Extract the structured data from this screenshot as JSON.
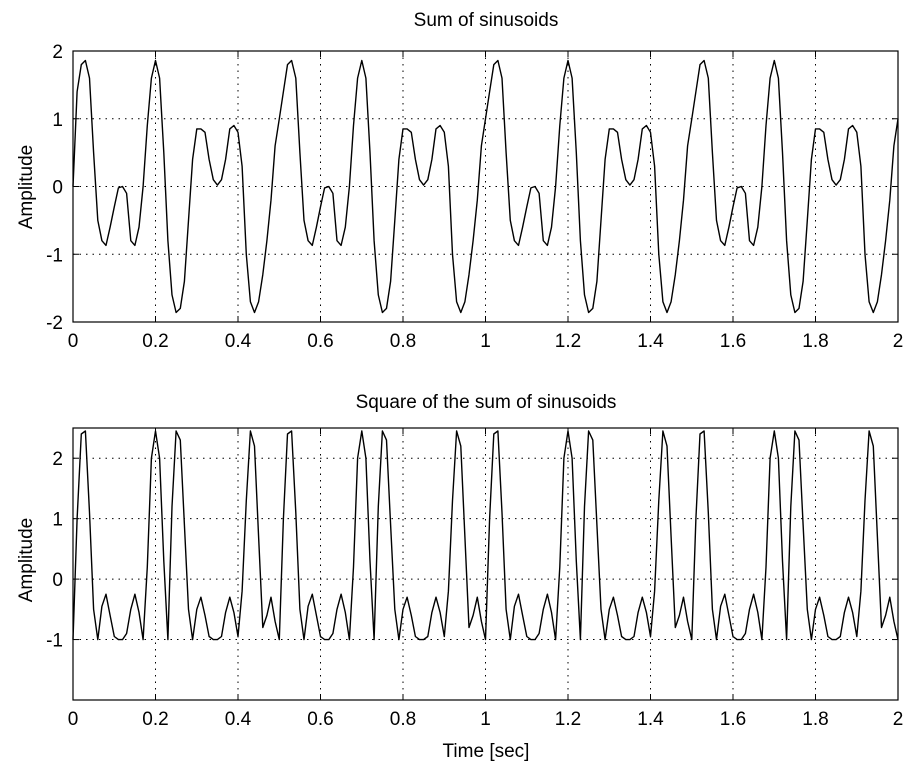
{
  "chart_data": [
    {
      "type": "line",
      "title": "Sum of sinusoids",
      "xlabel": "",
      "ylabel": "Amplitude",
      "xlim": [
        0,
        2
      ],
      "ylim": [
        -2,
        2
      ],
      "xticks": [
        0,
        0.2,
        0.4,
        0.6,
        0.8,
        1,
        1.2,
        1.4,
        1.6,
        1.8,
        2
      ],
      "xtick_labels": [
        "0",
        "0.2",
        "0.4",
        "0.6",
        "0.8",
        "1",
        "1.2",
        "1.4",
        "1.6",
        "1.8",
        "2"
      ],
      "yticks": [
        -2,
        -1,
        0,
        1,
        2
      ],
      "ytick_labels": [
        "-2",
        "-1",
        "0",
        "1",
        "2"
      ],
      "grid": true,
      "series": [
        {
          "x": [
            0,
            0.01,
            0.02,
            0.03,
            0.04,
            0.05,
            0.06,
            0.07,
            0.08,
            0.09,
            0.1,
            0.11,
            0.12,
            0.13,
            0.14,
            0.15,
            0.16,
            0.17,
            0.18,
            0.19,
            0.2,
            0.21,
            0.22,
            0.23,
            0.24,
            0.25,
            0.26,
            0.27,
            0.28,
            0.29,
            0.3,
            0.31,
            0.32,
            0.33,
            0.34,
            0.35,
            0.36,
            0.37,
            0.38,
            0.39,
            0.4,
            0.41,
            0.42,
            0.43,
            0.44,
            0.45,
            0.46,
            0.47,
            0.48,
            0.49,
            0.5
          ],
          "values": [
            0,
            1.4,
            1.8,
            1.86,
            1.6,
            0.5,
            -0.5,
            -0.8,
            -0.87,
            -0.6,
            -0.3,
            -0.02,
            0,
            -0.1,
            -0.8,
            -0.87,
            -0.6,
            0,
            0.9,
            1.6,
            1.86,
            1.6,
            0.5,
            -0.8,
            -1.6,
            -1.86,
            -1.8,
            -1.4,
            -0.5,
            0.4,
            0.85,
            0.85,
            0.8,
            0.4,
            0.1,
            0.02,
            0.1,
            0.4,
            0.85,
            0.9,
            0.8,
            0.3,
            -1.0,
            -1.7,
            -1.86,
            -1.7,
            -1.3,
            -0.8,
            -0.2,
            0.6,
            1.0
          ],
          "period": 0.5
        }
      ]
    },
    {
      "type": "line",
      "title": "Square of the sum of sinusoids",
      "xlabel": "Time [sec]",
      "ylabel": "Amplitude",
      "xlim": [
        0,
        2
      ],
      "ylim": [
        -2,
        2.5
      ],
      "xticks": [
        0,
        0.2,
        0.4,
        0.6,
        0.8,
        1,
        1.2,
        1.4,
        1.6,
        1.8,
        2
      ],
      "xtick_labels": [
        "0",
        "0.2",
        "0.4",
        "0.6",
        "0.8",
        "1",
        "1.2",
        "1.4",
        "1.6",
        "1.8",
        "2"
      ],
      "yticks": [
        -1,
        0,
        1,
        2
      ],
      "ytick_labels": [
        "-1",
        "0",
        "1",
        "2"
      ],
      "grid": true,
      "series": [
        {
          "x": [
            0,
            0.01,
            0.02,
            0.03,
            0.04,
            0.05,
            0.06,
            0.07,
            0.08,
            0.09,
            0.1,
            0.11,
            0.12,
            0.13,
            0.14,
            0.15,
            0.16,
            0.17,
            0.18,
            0.19,
            0.2,
            0.21,
            0.22,
            0.23,
            0.24,
            0.25,
            0.26,
            0.27,
            0.28,
            0.29,
            0.3,
            0.31,
            0.32,
            0.33,
            0.34,
            0.35,
            0.36,
            0.37,
            0.38,
            0.39,
            0.4,
            0.41,
            0.42,
            0.43,
            0.44,
            0.45,
            0.46,
            0.47,
            0.48,
            0.49,
            0.5
          ],
          "values": [
            -1.0,
            1.0,
            2.4,
            2.45,
            1.1,
            -0.5,
            -1.0,
            -0.45,
            -0.25,
            -0.6,
            -0.95,
            -1.0,
            -1.0,
            -0.9,
            -0.5,
            -0.25,
            -0.55,
            -1.0,
            0.2,
            2.0,
            2.45,
            2.0,
            0.3,
            -1.0,
            1.2,
            2.45,
            2.3,
            0.9,
            -0.5,
            -1.0,
            -0.5,
            -0.3,
            -0.6,
            -0.95,
            -1.0,
            -1.0,
            -0.95,
            -0.55,
            -0.3,
            -0.55,
            -0.95,
            -0.2,
            1.3,
            2.45,
            2.2,
            0.7,
            -0.8,
            -0.6,
            -0.3,
            -0.7,
            -1.0
          ],
          "period": 0.5
        }
      ]
    }
  ]
}
